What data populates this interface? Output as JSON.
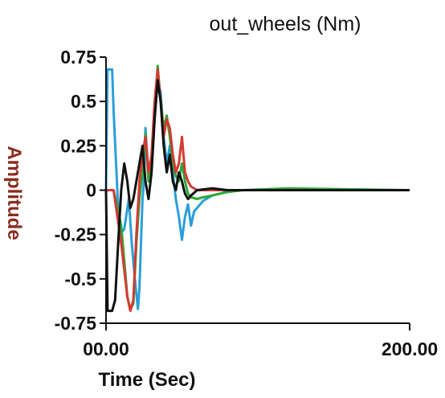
{
  "chart_data": {
    "type": "line",
    "title": "out_wheels (Nm)",
    "xlabel": "Time (Sec)",
    "ylabel": "Amplitude",
    "xlim": [
      0,
      200
    ],
    "ylim": [
      -0.75,
      0.75
    ],
    "x_tick_labels": [
      "00.00",
      "200.00"
    ],
    "x_tick_values": [
      0,
      200
    ],
    "y_tick_labels": [
      "0.75",
      "0.5",
      "0.25",
      "0",
      "-0.25",
      "-0.5",
      "-0.75"
    ],
    "y_tick_values": [
      0.75,
      0.5,
      0.25,
      0,
      -0.25,
      -0.5,
      -0.75
    ],
    "grid": false,
    "legend": "none",
    "series": [
      {
        "color": "#2a9fd8",
        "points": [
          [
            0,
            0
          ],
          [
            1,
            0.68
          ],
          [
            4,
            0.68
          ],
          [
            5,
            0.45
          ],
          [
            8,
            -0.1
          ],
          [
            10,
            -0.24
          ],
          [
            12,
            -0.22
          ],
          [
            15,
            -0.05
          ],
          [
            17,
            -0.3
          ],
          [
            19,
            -0.5
          ],
          [
            21,
            -0.67
          ],
          [
            22,
            -0.55
          ],
          [
            23,
            -0.3
          ],
          [
            24,
            -0.05
          ],
          [
            25,
            0.05
          ],
          [
            26,
            0.35
          ],
          [
            28,
            0.08
          ],
          [
            30,
            0.15
          ],
          [
            32,
            0.45
          ],
          [
            34,
            0.62
          ],
          [
            36,
            0.55
          ],
          [
            38,
            0.3
          ],
          [
            40,
            0.15
          ],
          [
            42,
            0.25
          ],
          [
            44,
            0.1
          ],
          [
            46,
            -0.05
          ],
          [
            48,
            -0.15
          ],
          [
            50,
            -0.28
          ],
          [
            52,
            -0.15
          ],
          [
            54,
            -0.08
          ],
          [
            56,
            -0.2
          ],
          [
            58,
            -0.12
          ],
          [
            60,
            -0.1
          ],
          [
            64,
            -0.06
          ],
          [
            70,
            -0.03
          ],
          [
            80,
            -0.01
          ],
          [
            90,
            0.0
          ],
          [
            110,
            0.0
          ],
          [
            200,
            0.0
          ]
        ]
      },
      {
        "color": "#2ba835",
        "points": [
          [
            0,
            0
          ],
          [
            3,
            0
          ],
          [
            5,
            0.0
          ],
          [
            10,
            -0.2
          ],
          [
            14,
            -0.6
          ],
          [
            16,
            -0.67
          ],
          [
            18,
            -0.64
          ],
          [
            20,
            -0.3
          ],
          [
            22,
            -0.05
          ],
          [
            24,
            0.1
          ],
          [
            26,
            0.32
          ],
          [
            28,
            0.05
          ],
          [
            30,
            0.12
          ],
          [
            32,
            0.42
          ],
          [
            34,
            0.7
          ],
          [
            36,
            0.5
          ],
          [
            38,
            0.35
          ],
          [
            40,
            0.42
          ],
          [
            42,
            0.3
          ],
          [
            44,
            0.15
          ],
          [
            46,
            0.08
          ],
          [
            48,
            0.05
          ],
          [
            50,
            0.15
          ],
          [
            52,
            0.05
          ],
          [
            54,
            -0.02
          ],
          [
            56,
            -0.04
          ],
          [
            60,
            -0.05
          ],
          [
            64,
            -0.04
          ],
          [
            70,
            -0.03
          ],
          [
            80,
            -0.01
          ],
          [
            90,
            0.0
          ],
          [
            120,
            0.01
          ],
          [
            200,
            0.0
          ]
        ]
      },
      {
        "color": "#d43a32",
        "points": [
          [
            0,
            0
          ],
          [
            5,
            0.0
          ],
          [
            10,
            -0.3
          ],
          [
            14,
            -0.6
          ],
          [
            16,
            -0.68
          ],
          [
            18,
            -0.62
          ],
          [
            20,
            -0.25
          ],
          [
            22,
            0.05
          ],
          [
            24,
            0.2
          ],
          [
            26,
            0.3
          ],
          [
            28,
            0.1
          ],
          [
            30,
            0.2
          ],
          [
            32,
            0.5
          ],
          [
            34,
            0.68
          ],
          [
            36,
            0.5
          ],
          [
            38,
            0.3
          ],
          [
            40,
            0.4
          ],
          [
            42,
            0.35
          ],
          [
            44,
            0.2
          ],
          [
            46,
            0.1
          ],
          [
            48,
            0.15
          ],
          [
            50,
            0.3
          ],
          [
            52,
            0.1
          ],
          [
            54,
            0.05
          ],
          [
            56,
            0.02
          ],
          [
            60,
            0.0
          ],
          [
            70,
            0.0
          ],
          [
            80,
            0.0
          ],
          [
            90,
            0.0
          ],
          [
            200,
            0.0
          ]
        ]
      },
      {
        "color": "#111111",
        "points": [
          [
            0,
            0
          ],
          [
            1,
            -0.68
          ],
          [
            4,
            -0.68
          ],
          [
            6,
            -0.62
          ],
          [
            8,
            -0.3
          ],
          [
            10,
            0.0
          ],
          [
            12,
            0.15
          ],
          [
            14,
            0.05
          ],
          [
            16,
            -0.1
          ],
          [
            18,
            -0.05
          ],
          [
            20,
            0.05
          ],
          [
            22,
            0.15
          ],
          [
            24,
            0.25
          ],
          [
            26,
            0.05
          ],
          [
            28,
            -0.05
          ],
          [
            30,
            0.1
          ],
          [
            32,
            0.4
          ],
          [
            34,
            0.62
          ],
          [
            36,
            0.5
          ],
          [
            38,
            0.25
          ],
          [
            40,
            0.1
          ],
          [
            42,
            0.2
          ],
          [
            44,
            0.05
          ],
          [
            46,
            0.0
          ],
          [
            48,
            0.1
          ],
          [
            50,
            0.05
          ],
          [
            52,
            -0.02
          ],
          [
            54,
            -0.05
          ],
          [
            56,
            -0.03
          ],
          [
            60,
            0.0
          ],
          [
            70,
            0.01
          ],
          [
            80,
            0.0
          ],
          [
            200,
            0.0
          ]
        ]
      }
    ]
  }
}
